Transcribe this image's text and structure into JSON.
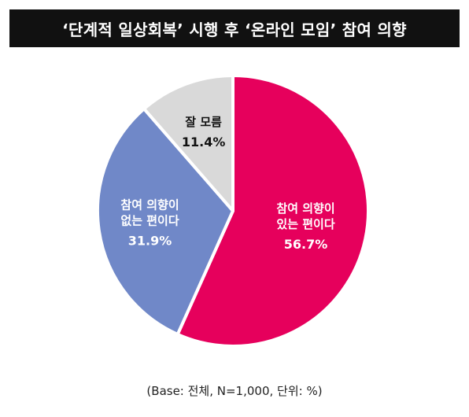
{
  "chart_data": {
    "type": "pie",
    "title": "‘단계적 일상회복’ 시행 후 ‘온라인 모임’ 참여 의향",
    "note": "(Base: 전체, N=1,000, 단위: %)",
    "start_angle_deg": 0,
    "direction": "clockwise",
    "slices": [
      {
        "label": [
          "참여 의향이",
          "있는 편이다"
        ],
        "value": 56.7,
        "display": "56.7%",
        "color": "#e6005c",
        "text_color": "#ffffff"
      },
      {
        "label": [
          "참여 의향이",
          "없는 편이다"
        ],
        "value": 31.9,
        "display": "31.9%",
        "color": "#7088c8",
        "text_color": "#ffffff"
      },
      {
        "label": [
          "잘 모름"
        ],
        "value": 11.4,
        "display": "11.4%",
        "color": "#d9d9d9",
        "text_color": "#111111"
      }
    ]
  }
}
